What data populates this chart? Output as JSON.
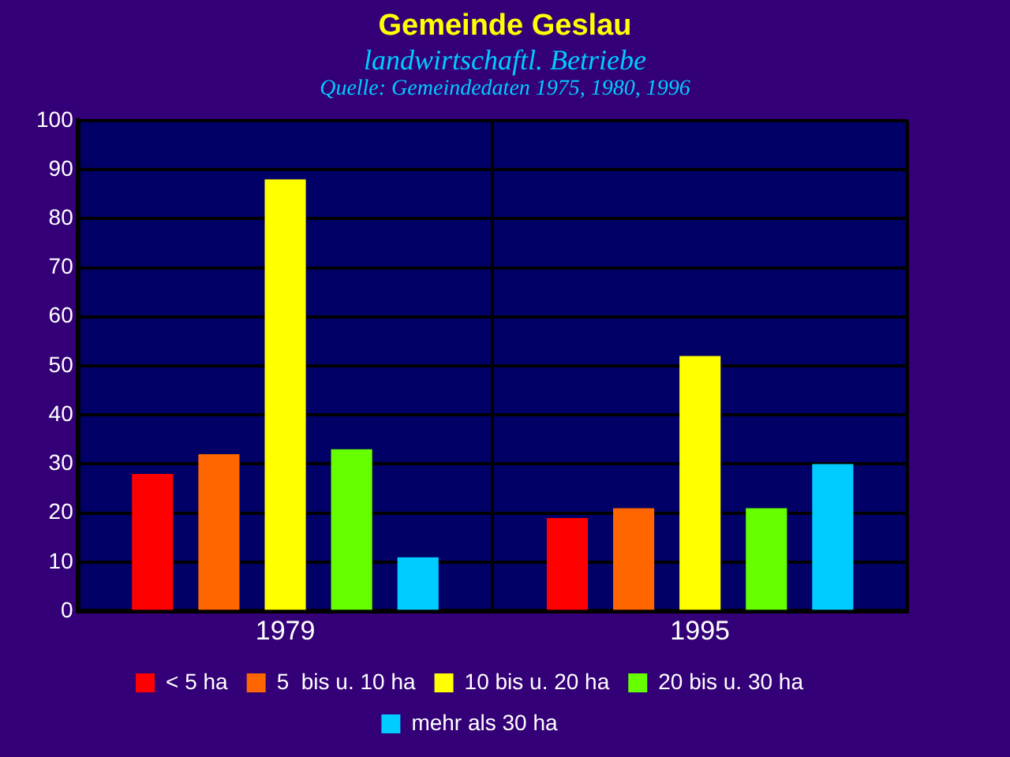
{
  "chart_data": {
    "type": "bar",
    "title": "Gemeinde Geslau",
    "subtitle": "landwirtschaftl. Betriebe",
    "annotations": [
      "Quelle: Gemeindedaten 1975, 1980, 1996"
    ],
    "categories": [
      "1979",
      "1995"
    ],
    "series": [
      {
        "name": "< 5 ha",
        "color": "#ff0000",
        "values": [
          28,
          19
        ]
      },
      {
        "name": "5  bis u. 10 ha",
        "color": "#ff6600",
        "values": [
          32,
          21
        ]
      },
      {
        "name": "10 bis u. 20 ha",
        "color": "#ffff00",
        "values": [
          88,
          52
        ]
      },
      {
        "name": "20 bis u. 30 ha",
        "color": "#66ff00",
        "values": [
          33,
          21
        ]
      },
      {
        "name": "mehr als 30 ha",
        "color": "#00ccff",
        "values": [
          11,
          30
        ]
      }
    ],
    "ylim": [
      0,
      100
    ],
    "yticks": [
      0,
      10,
      20,
      30,
      40,
      50,
      60,
      70,
      80,
      90,
      100
    ],
    "grid": true,
    "legend": "bottom"
  }
}
